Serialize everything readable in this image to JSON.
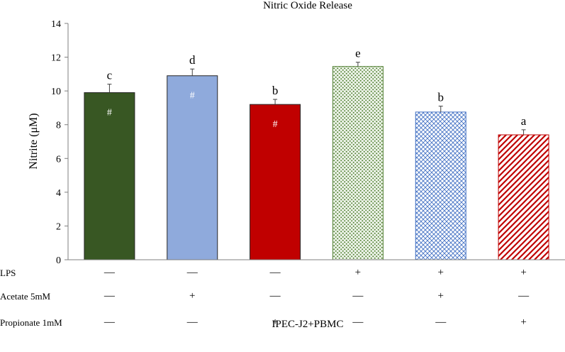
{
  "chart_data": {
    "type": "bar",
    "title": "Nitric Oxide Release",
    "ylabel": "Nitrite (μM)",
    "xlabel": "IPEC-J2+PBMC",
    "ylim": [
      0,
      14
    ],
    "yticks": [
      "0",
      "2",
      "4",
      "6",
      "8",
      "10",
      "12",
      "14"
    ],
    "grid": false,
    "values": [
      9.9,
      10.9,
      9.2,
      11.45,
      8.75,
      7.4
    ],
    "errors": [
      0.5,
      0.4,
      0.3,
      0.25,
      0.35,
      0.3
    ],
    "letters": [
      "c",
      "d",
      "b",
      "e",
      "b",
      "a"
    ],
    "hash_marks": [
      "#",
      "#",
      "#",
      "",
      "",
      ""
    ],
    "fills": [
      {
        "style": "solid",
        "color": "#385723"
      },
      {
        "style": "solid",
        "color": "#8faadc"
      },
      {
        "style": "solid",
        "color": "#c00000"
      },
      {
        "style": "dots",
        "color": "#548235"
      },
      {
        "style": "cross",
        "color": "#4472c4"
      },
      {
        "style": "diagonal",
        "color": "#c00000"
      }
    ],
    "treatments": [
      {
        "label": "LPS",
        "signs": [
          "—",
          "—",
          "—",
          "+",
          "+",
          "+"
        ]
      },
      {
        "label": "Acetate 5mM",
        "signs": [
          "—",
          "+",
          "—",
          "—",
          "+",
          "—"
        ]
      },
      {
        "label": "Propionate 1mM",
        "signs": [
          "—",
          "—",
          "+",
          "—",
          "—",
          "+"
        ]
      }
    ]
  }
}
